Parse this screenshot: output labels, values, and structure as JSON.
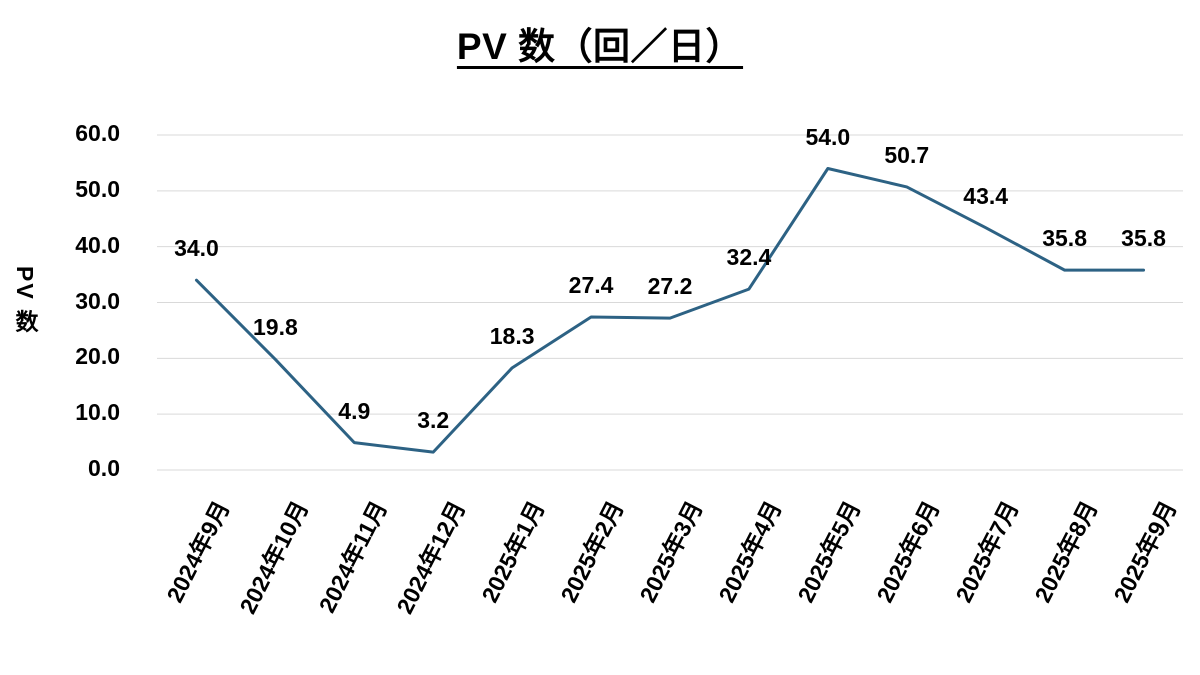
{
  "title": "PV 数（回／日）",
  "y_axis_title": "PV 数",
  "chart_data": {
    "type": "line",
    "title": "PV 数（回／日）",
    "xlabel": "",
    "ylabel": "PV 数",
    "categories": [
      "2024年9月",
      "2024年10月",
      "2024年11月",
      "2024年12月",
      "2025年1月",
      "2025年2月",
      "2025年3月",
      "2025年4月",
      "2025年5月",
      "2025年6月",
      "2025年7月",
      "2025年8月",
      "2025年9月"
    ],
    "values": [
      34.0,
      19.8,
      4.9,
      3.2,
      18.3,
      27.4,
      27.2,
      32.4,
      54.0,
      50.7,
      43.4,
      35.8,
      35.8
    ],
    "data_labels": [
      "34.0",
      "19.8",
      "4.9",
      "3.2",
      "18.3",
      "27.4",
      "27.2",
      "32.4",
      "54.0",
      "50.7",
      "43.4",
      "35.8",
      "35.8"
    ],
    "y_ticks": [
      "0.0",
      "10.0",
      "20.0",
      "30.0",
      "40.0",
      "50.0",
      "60.0"
    ],
    "ylim": [
      0,
      60
    ],
    "grid": true,
    "legend": "none",
    "colors": {
      "line": "#2D6284",
      "gridline": "#D9D9D9",
      "text": "#000000",
      "background": "#FFFFFF"
    }
  }
}
